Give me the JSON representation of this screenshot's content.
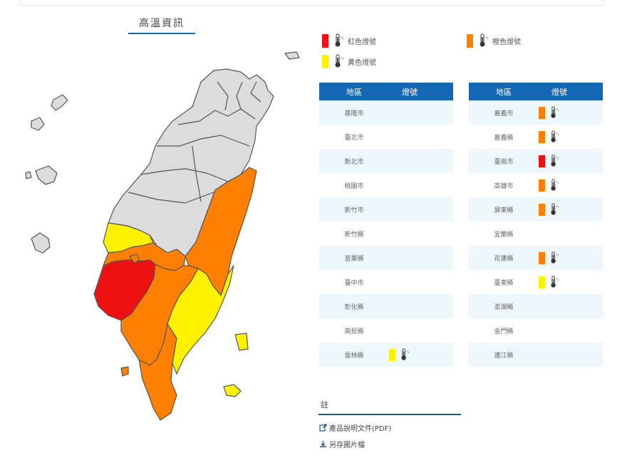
{
  "title": "高溫資訊",
  "legend": {
    "red": {
      "label": "紅色燈號",
      "color": "#ee1111"
    },
    "orange": {
      "label": "橙色燈號",
      "color": "#ff8000"
    },
    "yellow": {
      "label": "黃色燈號",
      "color": "#fff200"
    }
  },
  "table_headers": {
    "region": "地區",
    "signal": "燈號"
  },
  "table_left": [
    {
      "name": "基隆市",
      "signal": ""
    },
    {
      "name": "臺北市",
      "signal": ""
    },
    {
      "name": "新北市",
      "signal": ""
    },
    {
      "name": "桃園市",
      "signal": ""
    },
    {
      "name": "新竹市",
      "signal": ""
    },
    {
      "name": "新竹縣",
      "signal": ""
    },
    {
      "name": "苗栗縣",
      "signal": ""
    },
    {
      "name": "臺中市",
      "signal": ""
    },
    {
      "name": "彰化縣",
      "signal": ""
    },
    {
      "name": "南投縣",
      "signal": ""
    },
    {
      "name": "雲林縣",
      "signal": "yellow"
    }
  ],
  "table_right": [
    {
      "name": "嘉義市",
      "signal": "orange"
    },
    {
      "name": "嘉義縣",
      "signal": "orange"
    },
    {
      "name": "臺南市",
      "signal": "red"
    },
    {
      "name": "高雄市",
      "signal": "orange"
    },
    {
      "name": "屏東縣",
      "signal": "orange"
    },
    {
      "name": "宜蘭縣",
      "signal": ""
    },
    {
      "name": "花蓮縣",
      "signal": "orange"
    },
    {
      "name": "臺東縣",
      "signal": "yellow"
    },
    {
      "name": "澎湖縣",
      "signal": ""
    },
    {
      "name": "金門縣",
      "signal": ""
    },
    {
      "name": "連江縣",
      "signal": ""
    }
  ],
  "notes": {
    "label": "註",
    "pdf_link": "產品說明文件(PDF)",
    "save_link": "另存圖片檔"
  },
  "colors": {
    "header_blue": "#1367b3",
    "gray_region": "#dcdcdc",
    "border": "#555555"
  },
  "icons": {
    "signal": "thermometer-icon",
    "pdf": "external-link-icon",
    "save": "download-icon"
  }
}
